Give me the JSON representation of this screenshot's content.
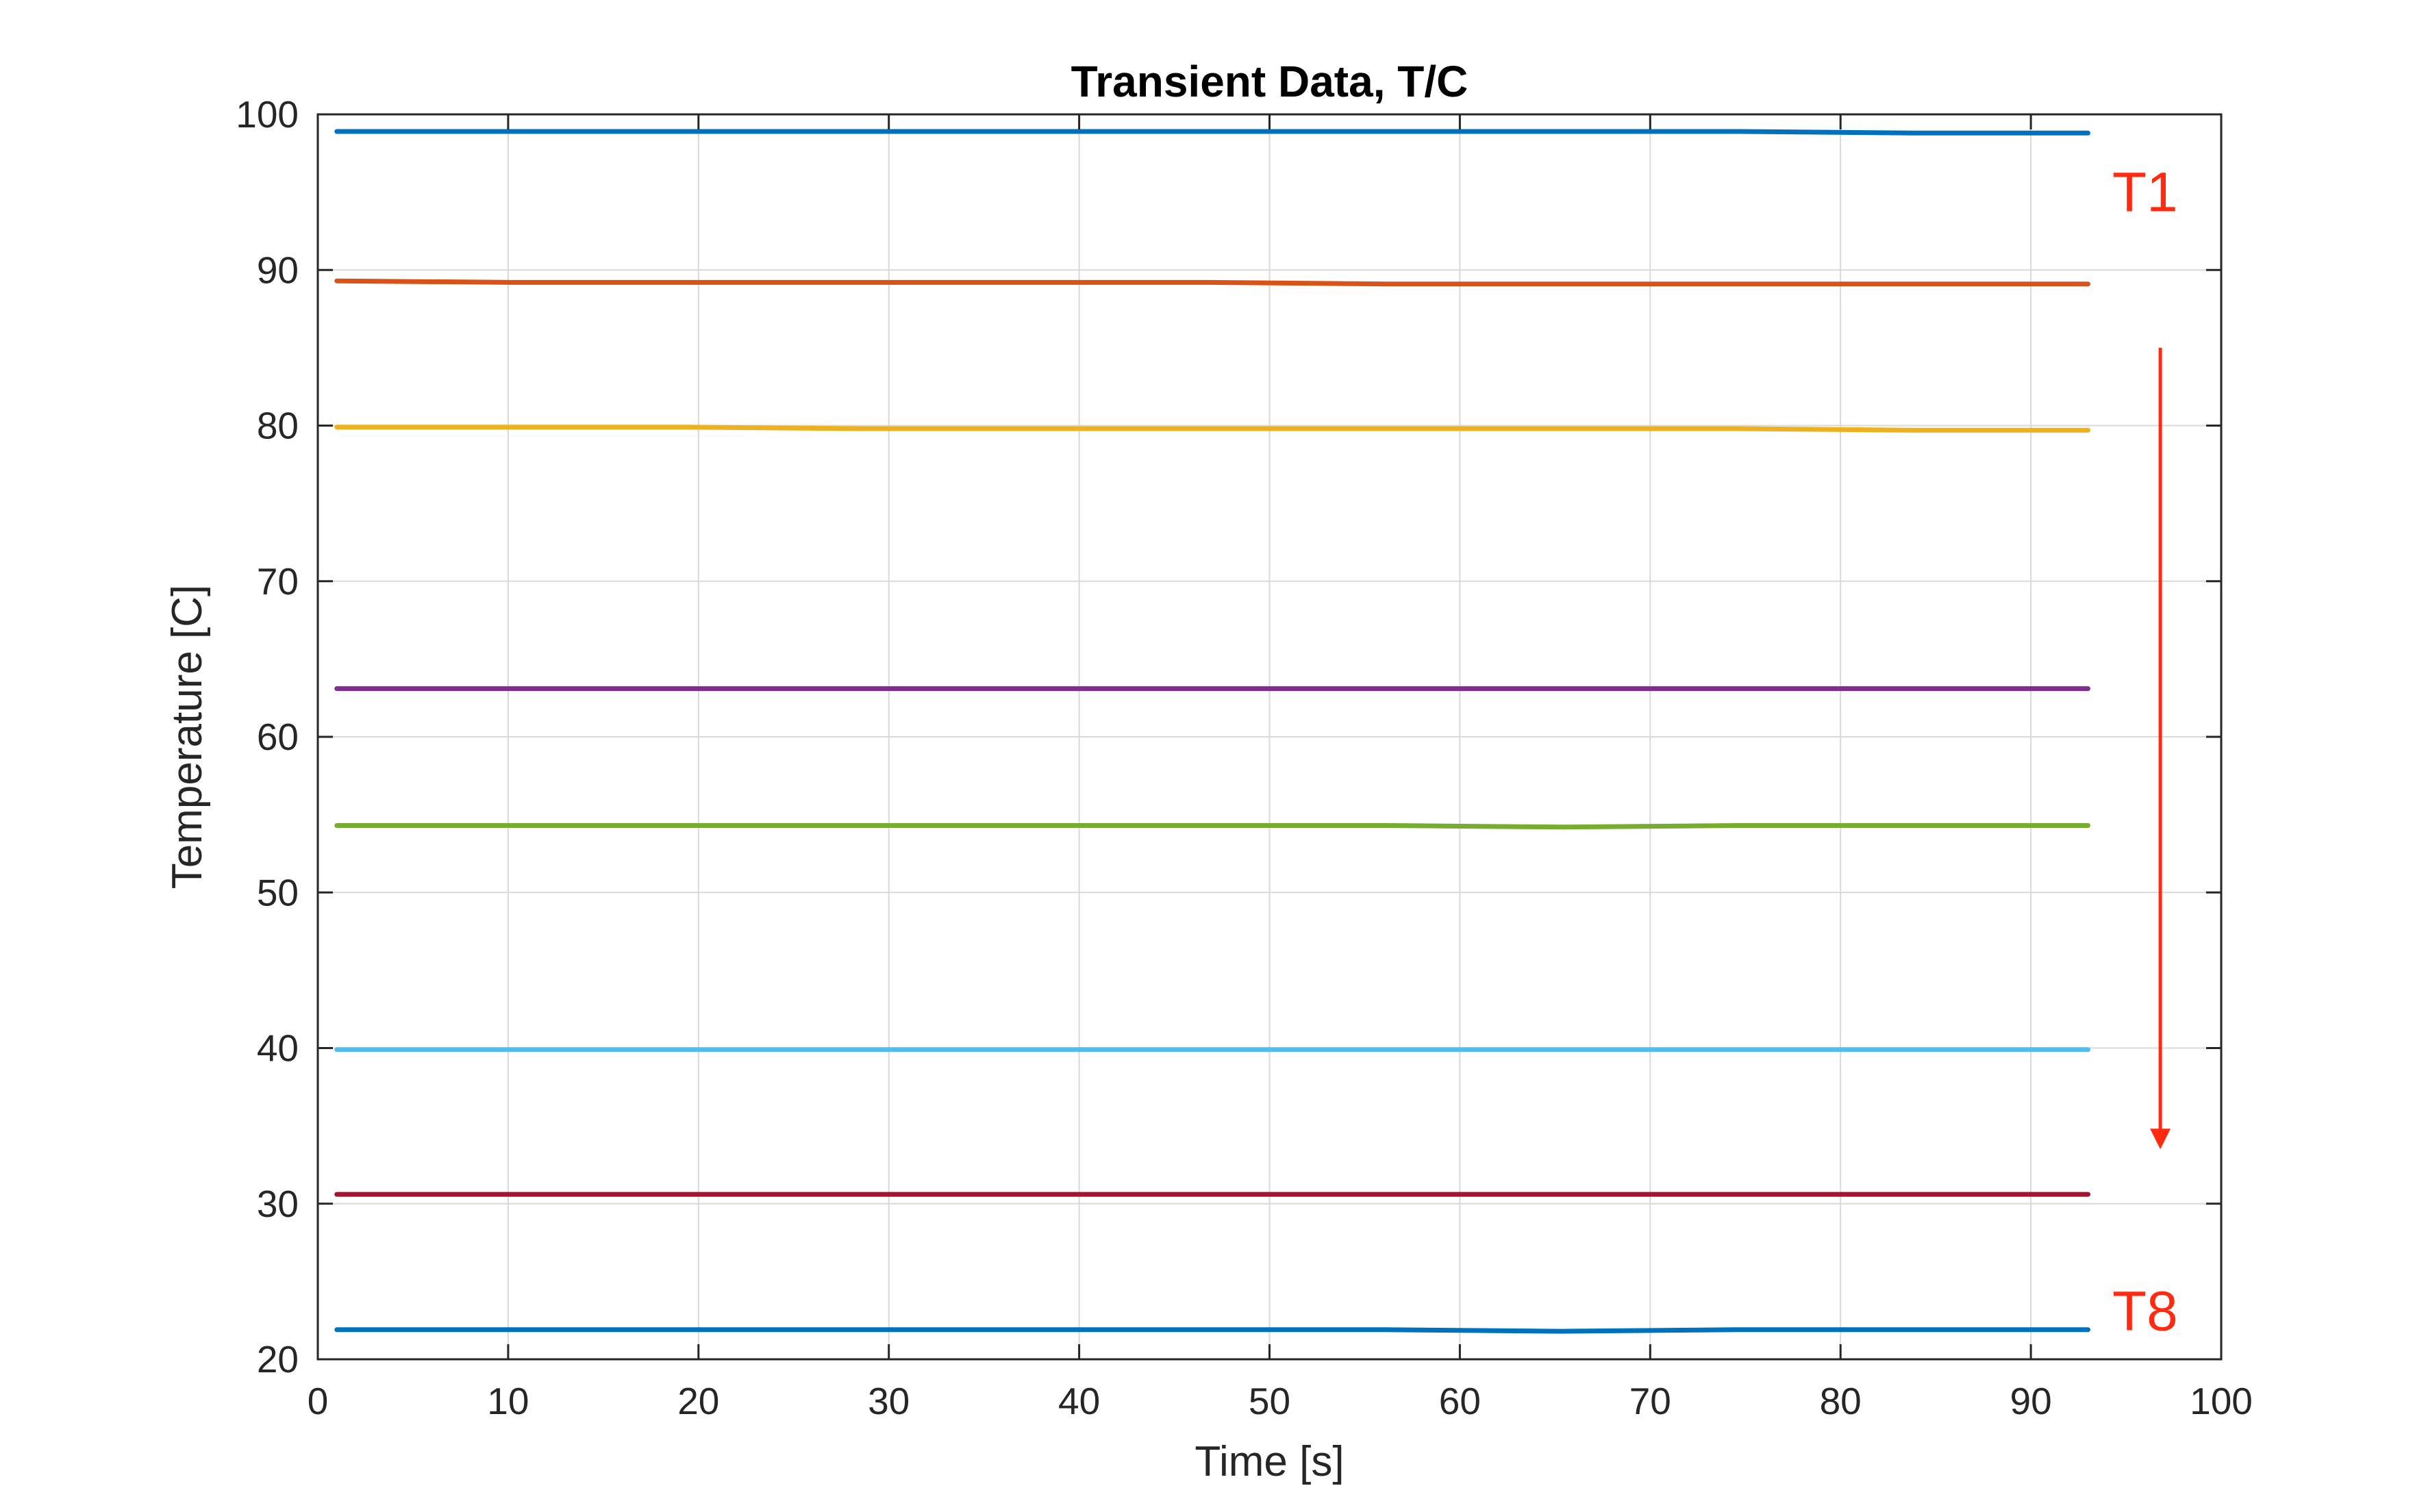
{
  "chart_data": {
    "type": "line",
    "title": "Transient Data, T/C",
    "xlabel": "Time [s]",
    "ylabel": "Temperature [C]",
    "xlim": [
      0,
      100
    ],
    "ylim": [
      20,
      100
    ],
    "xticks": [
      0,
      10,
      20,
      30,
      40,
      50,
      60,
      70,
      80,
      90,
      100
    ],
    "yticks": [
      20,
      30,
      40,
      50,
      60,
      70,
      80,
      90,
      100
    ],
    "grid": true,
    "x_start": 1,
    "x_end": 93,
    "series": [
      {
        "color": "#0072BD",
        "values": [
          98.9,
          98.9,
          98.9,
          98.9,
          98.9,
          98.9,
          98.9,
          98.9,
          98.9,
          98.8,
          98.8
        ]
      },
      {
        "color": "#D95319",
        "values": [
          89.3,
          89.2,
          89.2,
          89.2,
          89.2,
          89.2,
          89.1,
          89.1,
          89.1,
          89.1,
          89.1
        ]
      },
      {
        "color": "#EDB120",
        "values": [
          79.9,
          79.9,
          79.9,
          79.8,
          79.8,
          79.8,
          79.8,
          79.8,
          79.8,
          79.7,
          79.7
        ]
      },
      {
        "color": "#7E2F8E",
        "values": [
          63.1,
          63.1,
          63.1,
          63.1,
          63.1,
          63.1,
          63.1,
          63.1,
          63.1,
          63.1,
          63.1
        ]
      },
      {
        "color": "#77AC30",
        "values": [
          54.3,
          54.3,
          54.3,
          54.3,
          54.3,
          54.3,
          54.3,
          54.2,
          54.3,
          54.3,
          54.3
        ]
      },
      {
        "color": "#4DBEEE",
        "values": [
          39.9,
          39.9,
          39.9,
          39.9,
          39.9,
          39.9,
          39.9,
          39.9,
          39.9,
          39.9,
          39.9
        ]
      },
      {
        "color": "#A2142F",
        "values": [
          30.6,
          30.6,
          30.6,
          30.6,
          30.6,
          30.6,
          30.6,
          30.6,
          30.6,
          30.6,
          30.6
        ]
      },
      {
        "color": "#0072BD",
        "values": [
          21.9,
          21.9,
          21.9,
          21.9,
          21.9,
          21.9,
          21.9,
          21.8,
          21.9,
          21.9,
          21.9
        ]
      }
    ],
    "annotations": [
      {
        "text": "T1",
        "x": 96,
        "y": 95.1,
        "color": "#ff2a10"
      },
      {
        "text": "T8",
        "x": 96,
        "y": 23.2,
        "color": "#ff2a10"
      }
    ],
    "arrow": {
      "x": 96.8,
      "y_from": 85,
      "y_to": 33.5,
      "color": "#ff2a10"
    }
  }
}
